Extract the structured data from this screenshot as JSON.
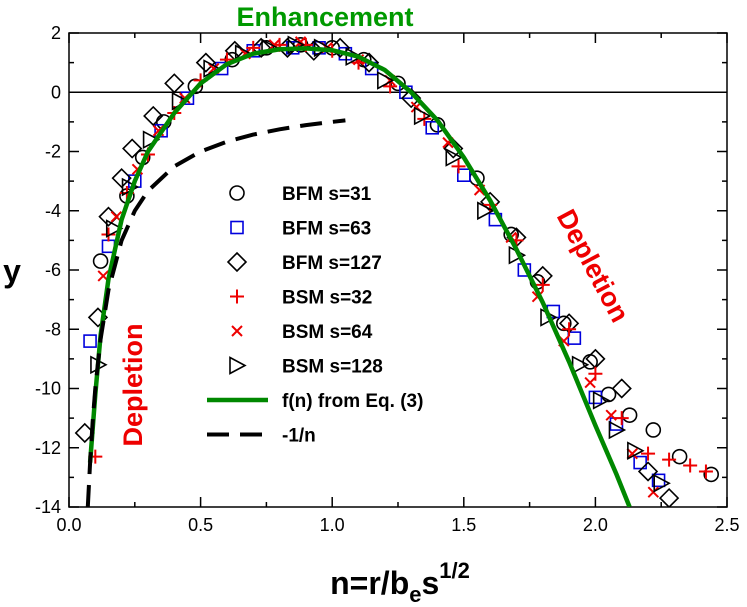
{
  "chart_data": {
    "type": "scatter",
    "title": "",
    "xlabel": "n=r/b",
    "xlabel_sub": "e",
    "xlabel_tail": "s",
    "xlabel_sup": "1/2",
    "ylabel": "y",
    "xlim": [
      0.0,
      2.5
    ],
    "ylim": [
      -14,
      2
    ],
    "xticks": [
      0.0,
      0.5,
      1.0,
      1.5,
      2.0,
      2.5
    ],
    "xtick_labels": [
      "0.0",
      "0.5",
      "1.0",
      "1.5",
      "2.0",
      "2.5"
    ],
    "yticks": [
      -14,
      -12,
      -10,
      -8,
      -6,
      -4,
      -2,
      0,
      2
    ],
    "ytick_labels": [
      "-14",
      "-12",
      "-10",
      "-8",
      "-6",
      "-4",
      "-2",
      "0",
      "2"
    ],
    "grid": false,
    "zero_line": 0,
    "legend_position": "center",
    "annotations": [
      {
        "text": "Enhancement",
        "color": "#009900"
      },
      {
        "text": "Depletion",
        "color": "#ee0000"
      },
      {
        "text": "Depletion",
        "color": "#ee0000"
      }
    ],
    "series": [
      {
        "name": "BFM s=31",
        "marker": "circle",
        "color": "#000000",
        "x": [
          0.12,
          0.22,
          0.28,
          0.36,
          0.48,
          0.62,
          0.75,
          0.88,
          1.0,
          1.12,
          1.25,
          1.4,
          1.55,
          1.68,
          1.78,
          1.88,
          1.98,
          2.05,
          2.13,
          2.22,
          2.32,
          2.44
        ],
        "y": [
          -5.7,
          -3.5,
          -2.2,
          -1.0,
          0.2,
          1.1,
          1.5,
          1.6,
          1.5,
          1.1,
          0.3,
          -1.1,
          -2.9,
          -4.8,
          -6.4,
          -7.8,
          -9.1,
          -10.2,
          -10.9,
          -11.4,
          -12.3,
          -12.9
        ]
      },
      {
        "name": "BFM s=63",
        "marker": "square",
        "color": "#0000dd",
        "x": [
          0.08,
          0.15,
          0.25,
          0.35,
          0.45,
          0.58,
          0.7,
          0.85,
          0.95,
          1.05,
          1.15,
          1.28,
          1.38,
          1.5,
          1.62,
          1.73,
          1.84,
          1.92,
          2.0,
          2.08,
          2.17,
          2.24
        ],
        "y": [
          -8.4,
          -5.2,
          -3.0,
          -1.3,
          -0.2,
          0.8,
          1.4,
          1.5,
          1.5,
          1.3,
          0.8,
          0.0,
          -1.2,
          -2.8,
          -4.3,
          -6.0,
          -7.4,
          -8.3,
          -10.3,
          -11.2,
          -12.5,
          -13.1
        ]
      },
      {
        "name": "BFM s=127",
        "marker": "diamond",
        "color": "#000000",
        "x": [
          0.06,
          0.11,
          0.15,
          0.2,
          0.24,
          0.32,
          0.4,
          0.52,
          0.63,
          0.73,
          0.83,
          0.93,
          1.03,
          1.14,
          1.3,
          1.46,
          1.6,
          1.7,
          1.8,
          1.9,
          2.0,
          2.1,
          2.2,
          2.28
        ],
        "y": [
          -11.5,
          -7.6,
          -4.2,
          -2.9,
          -1.9,
          -0.8,
          0.3,
          1.0,
          1.4,
          1.5,
          1.5,
          1.4,
          1.5,
          1.0,
          -0.2,
          -1.9,
          -3.7,
          -4.9,
          -6.2,
          -7.8,
          -9.0,
          -10.0,
          -12.8,
          -13.7
        ]
      },
      {
        "name": "BSM s=32",
        "marker": "plus",
        "color": "#ee0000",
        "x": [
          0.1,
          0.15,
          0.22,
          0.3,
          0.4,
          0.5,
          0.6,
          0.7,
          0.8,
          0.9,
          1.0,
          1.1,
          1.22,
          1.35,
          1.48,
          1.6,
          1.7,
          1.8,
          1.9,
          2.0,
          2.1,
          2.2,
          2.28,
          2.36,
          2.42
        ],
        "y": [
          -12.3,
          -4.8,
          -3.4,
          -2.1,
          -0.7,
          0.4,
          1.1,
          1.5,
          1.6,
          1.6,
          1.4,
          1.0,
          0.2,
          -0.9,
          -2.5,
          -3.8,
          -5.0,
          -6.5,
          -8.0,
          -9.5,
          -11.0,
          -12.2,
          -12.4,
          -12.6,
          -12.8
        ]
      },
      {
        "name": "BSM s=64",
        "marker": "x",
        "color": "#ee0000",
        "x": [
          0.13,
          0.18,
          0.26,
          0.34,
          0.44,
          0.55,
          0.67,
          0.78,
          0.88,
          0.98,
          1.1,
          1.22,
          1.32,
          1.44,
          1.56,
          1.68,
          1.78,
          1.88,
          1.98,
          2.06,
          2.14,
          2.22
        ],
        "y": [
          -6.2,
          -4.2,
          -2.6,
          -1.3,
          -0.2,
          0.8,
          1.3,
          1.6,
          1.7,
          1.5,
          1.1,
          0.4,
          -0.5,
          -1.7,
          -3.3,
          -4.9,
          -6.9,
          -8.4,
          -9.8,
          -10.9,
          -12.2,
          -13.5
        ]
      },
      {
        "name": "BSM s=128",
        "marker": "triangle-right",
        "color": "#000000",
        "x": [
          0.11,
          0.17,
          0.23,
          0.31,
          0.42,
          0.54,
          0.66,
          0.76,
          0.86,
          0.96,
          1.08,
          1.2,
          1.34,
          1.46,
          1.58,
          1.7,
          1.82,
          1.94,
          2.02,
          2.08,
          2.15,
          2.25
        ],
        "y": [
          -9.2,
          -4.6,
          -3.2,
          -1.6,
          -0.3,
          0.8,
          1.3,
          1.5,
          1.6,
          1.5,
          1.2,
          0.4,
          -0.8,
          -2.2,
          -4.0,
          -5.5,
          -7.6,
          -9.2,
          -10.4,
          -11.4,
          -12.1,
          -13.2
        ]
      },
      {
        "name": "f(n) from Eq. (3)",
        "marker": "line",
        "color": "#008800",
        "x": [
          0.08,
          0.1,
          0.12,
          0.15,
          0.2,
          0.25,
          0.3,
          0.4,
          0.5,
          0.6,
          0.7,
          0.8,
          0.9,
          1.0,
          1.1,
          1.2,
          1.3,
          1.4,
          1.5,
          1.6,
          1.7,
          1.8,
          1.9,
          2.0,
          2.08,
          2.13
        ],
        "y": [
          -12.5,
          -10.2,
          -8.2,
          -6.3,
          -4.3,
          -3.0,
          -2.0,
          -0.7,
          0.3,
          0.95,
          1.3,
          1.45,
          1.48,
          1.42,
          1.2,
          0.75,
          0.0,
          -0.95,
          -2.2,
          -3.65,
          -5.3,
          -7.1,
          -9.1,
          -11.25,
          -12.9,
          -14.0
        ]
      },
      {
        "name": "-1/n",
        "marker": "dash",
        "color": "#000000",
        "x": [
          0.0714,
          0.08,
          0.09,
          0.1,
          0.12,
          0.15,
          0.2,
          0.25,
          0.3,
          0.4,
          0.5,
          0.6,
          0.7,
          0.8,
          0.9,
          1.0,
          1.05
        ],
        "y": [
          -14.0,
          -12.5,
          -11.11,
          -10.0,
          -8.33,
          -6.67,
          -5.0,
          -4.0,
          -3.33,
          -2.5,
          -2.0,
          -1.67,
          -1.43,
          -1.25,
          -1.11,
          -1.0,
          -0.95
        ]
      }
    ]
  }
}
